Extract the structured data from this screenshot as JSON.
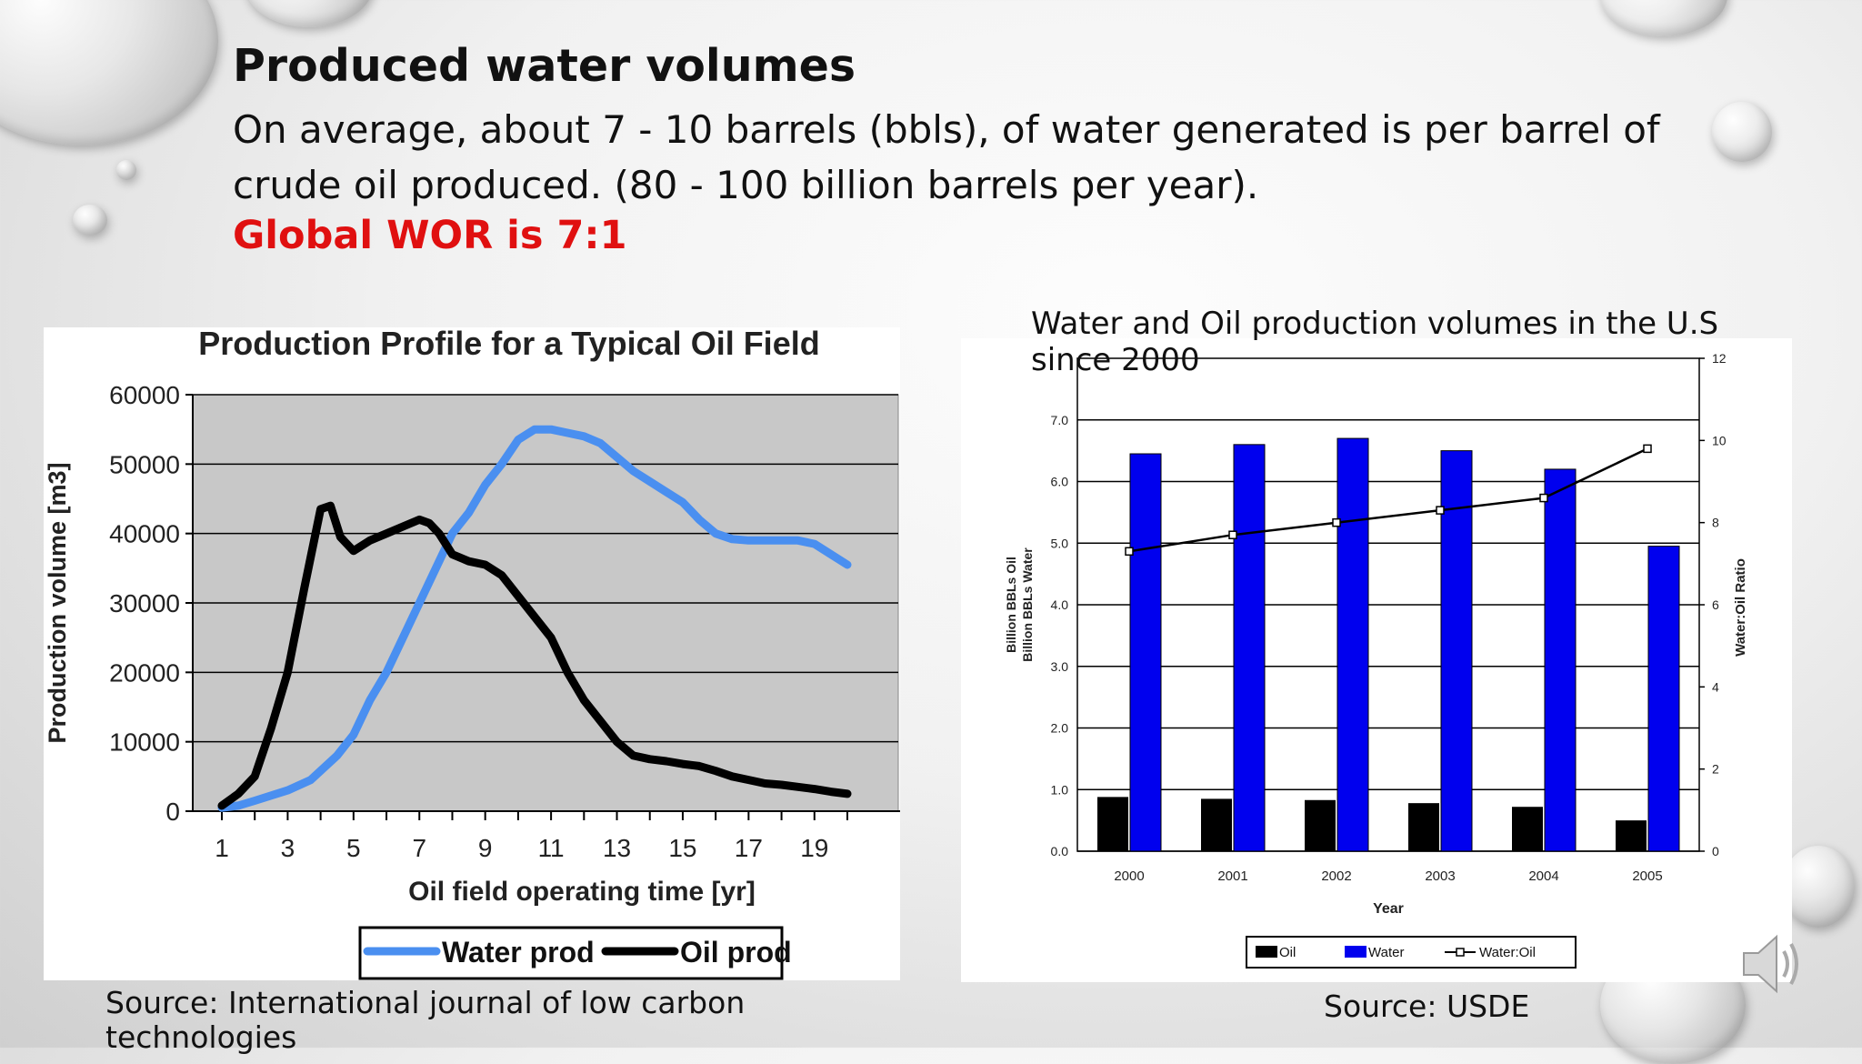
{
  "slide": {
    "title": "Produced water volumes",
    "paragraph": "On average, about 7 - 10 barrels (bbls), of water generated is per barrel of crude oil produced.  (80 - 100 billion barrels per year).",
    "highlight": "Global WOR is 7:1",
    "source_left": "Source: International journal of low carbon technologies",
    "source_right": "Source: USDE",
    "right_chart_caption": "Water and Oil production volumes in the U.S since 2000"
  },
  "colors": {
    "water_line": "#4a8ff0",
    "oil_line": "#000000",
    "water_bar": "#0000ee",
    "oil_bar": "#000000",
    "highlight": "#e01010"
  },
  "icons": {
    "speaker": "speaker-icon"
  },
  "chart_data": [
    {
      "type": "line",
      "title": "Production Profile for a Typical Oil Field",
      "xlabel": "Oil field operating time [yr]",
      "ylabel": "Production volume [m3]",
      "xlim": [
        1,
        20
      ],
      "ylim": [
        0,
        60000
      ],
      "x_ticks": [
        1,
        3,
        5,
        7,
        9,
        11,
        13,
        15,
        17,
        19
      ],
      "y_ticks": [
        0,
        10000,
        20000,
        30000,
        40000,
        50000,
        60000
      ],
      "grid": true,
      "legend": "bottom",
      "series": [
        {
          "name": "Water prod",
          "x": [
            1,
            1.5,
            2,
            3,
            3.7,
            4.5,
            5,
            5.5,
            6,
            6.5,
            7,
            7.5,
            8,
            8.5,
            9,
            9.5,
            10,
            10.5,
            11,
            11.5,
            12,
            12.5,
            13,
            13.5,
            14,
            14.5,
            15,
            15.5,
            16,
            16.5,
            17,
            17.5,
            18,
            18.5,
            19,
            19.5,
            20
          ],
          "y": [
            500,
            800,
            1500,
            3000,
            4500,
            8000,
            11000,
            16000,
            20000,
            25000,
            30000,
            35000,
            40000,
            43000,
            47000,
            50000,
            53500,
            55000,
            55000,
            54500,
            54000,
            53000,
            51000,
            49000,
            47500,
            46000,
            44500,
            42000,
            40000,
            39200,
            39000,
            39000,
            39000,
            39000,
            38500,
            37000,
            35500
          ]
        },
        {
          "name": "Oil prod",
          "x": [
            1,
            1.5,
            2,
            2.5,
            3,
            3.5,
            4,
            4.3,
            4.6,
            5,
            5.5,
            6,
            6.5,
            7,
            7.3,
            7.6,
            8,
            8.5,
            9,
            9.5,
            10,
            10.5,
            11,
            11.5,
            12,
            12.5,
            13,
            13.5,
            14,
            14.5,
            15,
            15.5,
            16,
            16.5,
            17,
            17.5,
            18,
            18.5,
            19,
            19.5,
            20
          ],
          "y": [
            800,
            2500,
            5000,
            12000,
            20000,
            32000,
            43500,
            44000,
            39500,
            37500,
            39000,
            40000,
            41000,
            42000,
            41500,
            40000,
            37000,
            36000,
            35500,
            34000,
            31000,
            28000,
            25000,
            20000,
            16000,
            13000,
            10000,
            8000,
            7500,
            7200,
            6800,
            6500,
            5800,
            5000,
            4500,
            4000,
            3800,
            3500,
            3200,
            2800,
            2500
          ]
        }
      ]
    },
    {
      "type": "bar",
      "xlabel": "Year",
      "ylabel": "Billion BBLs Oil\nBillion BBLs Water",
      "ylabel_lines": [
        "Billion BBLs Oil",
        "Billion BBLs Water"
      ],
      "y2label": "Water:Oil Ratio",
      "categories": [
        "2000",
        "2001",
        "2002",
        "2003",
        "2004",
        "2005"
      ],
      "ylim": [
        0,
        8
      ],
      "y_ticks": [
        0,
        1,
        2,
        3,
        4,
        5,
        6,
        7
      ],
      "y_tick_labels": [
        "0.0",
        "1.0",
        "2.0",
        "3.0",
        "4.0",
        "5.0",
        "6.0",
        "7.0"
      ],
      "y2lim": [
        0,
        12
      ],
      "y2_ticks": [
        0,
        2,
        4,
        6,
        8,
        10,
        12
      ],
      "legend": "bottom",
      "series": [
        {
          "name": "Oil",
          "kind": "bar",
          "values": [
            0.88,
            0.85,
            0.83,
            0.78,
            0.72,
            0.5
          ]
        },
        {
          "name": "Water",
          "kind": "bar",
          "values": [
            6.45,
            6.6,
            6.7,
            6.5,
            6.2,
            4.95
          ]
        },
        {
          "name": "Water:Oil",
          "kind": "line",
          "axis": "y2",
          "values": [
            7.3,
            7.7,
            8.0,
            8.3,
            8.6,
            9.8
          ]
        }
      ]
    }
  ]
}
